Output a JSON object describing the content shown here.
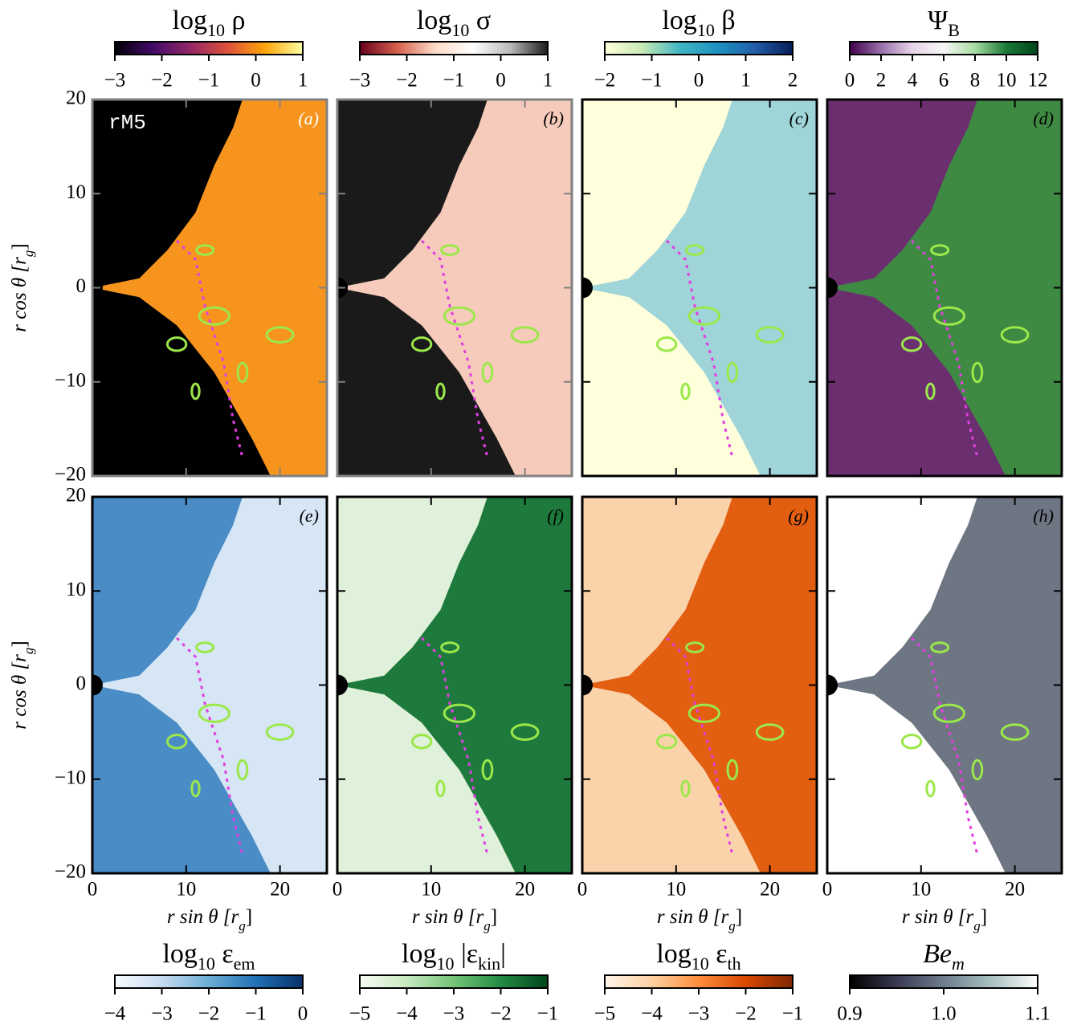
{
  "chart_data": [
    {
      "type": "heatmap",
      "panel_label": "(a)",
      "annotation": "rM5",
      "colorbar_label": [
        "log",
        "10",
        " ρ"
      ],
      "colormap": [
        "#000004",
        "#420a68",
        "#932667",
        "#dd513a",
        "#fca50a",
        "#fcffa4"
      ],
      "clim": [
        -3,
        1
      ],
      "cticks": [
        {
          "value": -3,
          "label": "−3"
        },
        {
          "value": -2,
          "label": "−2"
        },
        {
          "value": -1,
          "label": "−1"
        },
        0,
        1
      ],
      "xlim": [
        0,
        25
      ],
      "ylim": [
        -20,
        20
      ],
      "xticks": [
        0,
        10,
        20
      ],
      "yticks": [
        20,
        10,
        0,
        {
          "value": -10,
          "label": "−10"
        },
        {
          "value": -20,
          "label": "−20"
        }
      ],
      "ylabel": [
        "r cos θ [r",
        "g",
        "]"
      ],
      "background_color": "#000000",
      "disk_color": "#f7941d",
      "frame_color": "#808080"
    },
    {
      "type": "heatmap",
      "panel_label": "(b)",
      "colorbar_label": [
        "log",
        "10",
        " σ"
      ],
      "colormap": [
        "#67001f",
        "#d6604d",
        "#fddbc7",
        "#ffffff",
        "#bababa",
        "#1a1a1a"
      ],
      "clim": [
        -3,
        1
      ],
      "cticks": [
        {
          "value": -3,
          "label": "−3"
        },
        {
          "value": -2,
          "label": "−2"
        },
        {
          "value": -1,
          "label": "−1"
        },
        0,
        1
      ],
      "xlim": [
        0,
        25
      ],
      "ylim": [
        -20,
        20
      ],
      "xticks": [
        0,
        10,
        20
      ],
      "yticks": [
        20,
        10,
        0,
        -10,
        -20
      ],
      "background_color": "#1a1a1a",
      "disk_color": "#f6cbbb",
      "frame_color": "#808080"
    },
    {
      "type": "heatmap",
      "panel_label": "(c)",
      "colorbar_label": [
        "log",
        "10",
        " β"
      ],
      "colormap": [
        "#ffffd9",
        "#c7e9b4",
        "#41b6c4",
        "#1d91c0",
        "#225ea8",
        "#081d58"
      ],
      "clim": [
        -2,
        2
      ],
      "cticks": [
        {
          "value": -2,
          "label": "−2"
        },
        {
          "value": -1,
          "label": "−1"
        },
        0,
        1,
        2
      ],
      "xlim": [
        0,
        25
      ],
      "ylim": [
        -20,
        20
      ],
      "xticks": [
        0,
        10,
        20
      ],
      "yticks": [
        20,
        10,
        0,
        -10,
        -20
      ],
      "background_color": "#ffffdc",
      "disk_color": "#9fd4d8",
      "frame_color": "#000000"
    },
    {
      "type": "heatmap",
      "panel_label": "(d)",
      "colorbar_label": [
        "Ψ",
        "B"
      ],
      "colormap": [
        "#40004b",
        "#9970ab",
        "#e7d4e8",
        "#f7f7f7",
        "#a6dba0",
        "#1b7837",
        "#00441b"
      ],
      "clim": [
        0,
        12
      ],
      "cticks": [
        0,
        2,
        4,
        6,
        8,
        10,
        12
      ],
      "xlim": [
        0,
        25
      ],
      "ylim": [
        -20,
        20
      ],
      "xticks": [
        0,
        10,
        20
      ],
      "yticks": [
        20,
        10,
        0,
        -10,
        -20
      ],
      "background_color": "#6b2f70",
      "disk_color": "#3f8a43",
      "frame_color": "#000000"
    },
    {
      "type": "heatmap",
      "panel_label": "(e)",
      "colorbar_label": [
        "log",
        "10",
        " ε",
        "em",
        ""
      ],
      "colormap": [
        "#f7fbff",
        "#c6dbef",
        "#6baed6",
        "#2171b5",
        "#08306b"
      ],
      "clim": [
        -4,
        0
      ],
      "cticks": [
        {
          "value": -4,
          "label": "−4"
        },
        {
          "value": -3,
          "label": "−3"
        },
        {
          "value": -2,
          "label": "−2"
        },
        {
          "value": -1,
          "label": "−1"
        },
        0
      ],
      "xlim": [
        0,
        25
      ],
      "ylim": [
        -20,
        20
      ],
      "xticks": [
        0,
        10,
        20
      ],
      "yticks": [
        20,
        10,
        0,
        {
          "value": -10,
          "label": "−10"
        },
        {
          "value": -20,
          "label": "−20"
        }
      ],
      "xlabel": [
        "r sin θ [r",
        "g",
        "]"
      ],
      "ylabel": [
        "r cos θ [r",
        "g",
        "]"
      ],
      "background_color": "#4a8cc6",
      "disk_color": "#d6e6f4",
      "frame_color": "#000000"
    },
    {
      "type": "heatmap",
      "panel_label": "(f)",
      "colorbar_label": [
        "log",
        "10",
        " |ε",
        "kin",
        "|"
      ],
      "colormap": [
        "#f7fcf5",
        "#c7e9c0",
        "#74c476",
        "#238b45",
        "#00441b"
      ],
      "clim": [
        -5,
        -1
      ],
      "cticks": [
        {
          "value": -5,
          "label": "−5"
        },
        {
          "value": -4,
          "label": "−4"
        },
        {
          "value": -3,
          "label": "−3"
        },
        {
          "value": -2,
          "label": "−2"
        },
        {
          "value": -1,
          "label": "−1"
        }
      ],
      "xlim": [
        0,
        25
      ],
      "ylim": [
        -20,
        20
      ],
      "xticks": [
        0,
        10,
        20
      ],
      "yticks": [
        20,
        10,
        0,
        -10,
        -20
      ],
      "xlabel": [
        "r sin θ [r",
        "g",
        "]"
      ],
      "background_color": "#dff1da",
      "disk_color": "#1e7a3c",
      "frame_color": "#000000"
    },
    {
      "type": "heatmap",
      "panel_label": "(g)",
      "colorbar_label": [
        "log",
        "10",
        " ε",
        "th",
        ""
      ],
      "colormap": [
        "#fff5eb",
        "#fdd0a2",
        "#fd8d3c",
        "#d94801",
        "#7f2704"
      ],
      "clim": [
        -5,
        -1
      ],
      "cticks": [
        {
          "value": -5,
          "label": "−5"
        },
        {
          "value": -4,
          "label": "−4"
        },
        {
          "value": -3,
          "label": "−3"
        },
        {
          "value": -2,
          "label": "−2"
        },
        {
          "value": -1,
          "label": "−1"
        }
      ],
      "xlim": [
        0,
        25
      ],
      "ylim": [
        -20,
        20
      ],
      "xticks": [
        0,
        10,
        20
      ],
      "yticks": [
        20,
        10,
        0,
        -10,
        -20
      ],
      "xlabel": [
        "r sin θ [r",
        "g",
        "]"
      ],
      "background_color": "#fbd3ab",
      "disk_color": "#e25f12",
      "frame_color": "#000000"
    },
    {
      "type": "heatmap",
      "panel_label": "(h)",
      "colorbar_label": [
        "Be",
        "m"
      ],
      "colormap": [
        "#000000",
        "#3a3a52",
        "#6e7d8e",
        "#a7c0c0",
        "#ffffff"
      ],
      "clim": [
        0.9,
        1.1
      ],
      "cticks": [
        0.9,
        {
          "value": 1.0,
          "label": "1.0"
        },
        1.1
      ],
      "xlim": [
        0,
        25
      ],
      "ylim": [
        -20,
        20
      ],
      "xticks": [
        0,
        10,
        20
      ],
      "yticks": [
        20,
        10,
        0,
        -10,
        -20
      ],
      "xlabel": [
        "r sin θ [r",
        "g",
        "]"
      ],
      "background_color": "#ffffff",
      "disk_color": "#6e7583",
      "frame_color": "#000000"
    }
  ]
}
